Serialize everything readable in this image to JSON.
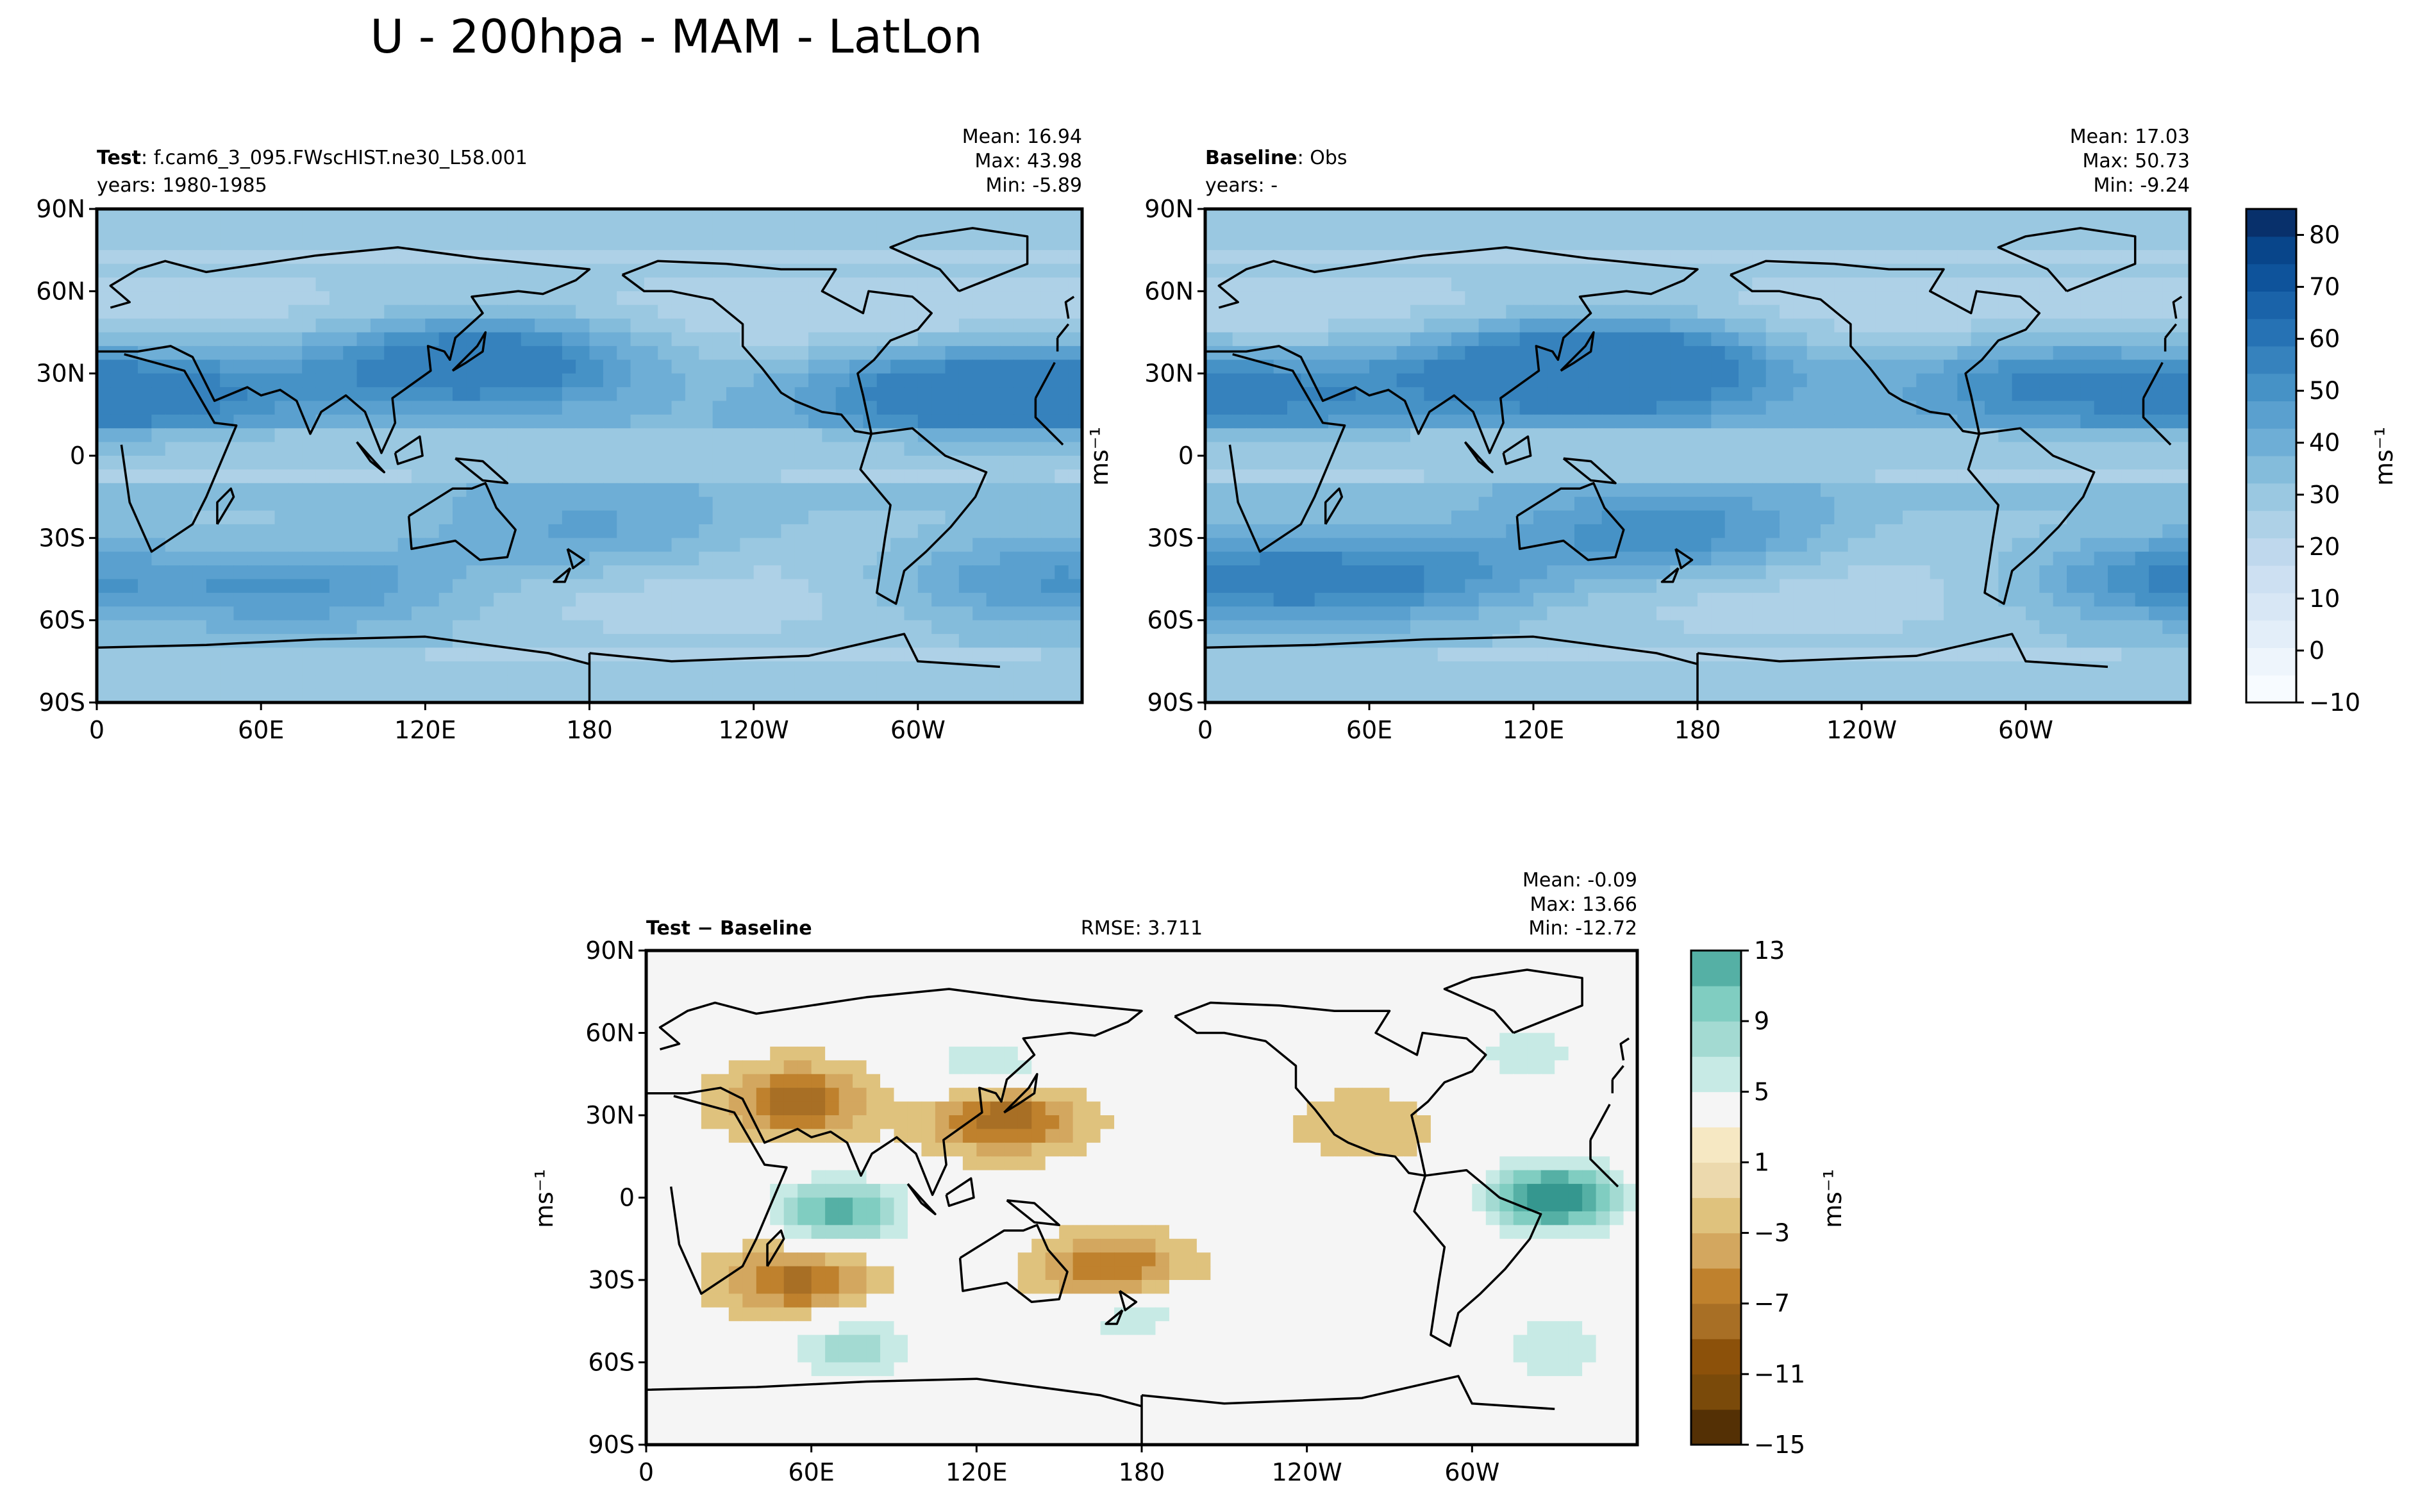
{
  "figure": {
    "title": "U - 200hpa - MAM - LatLon"
  },
  "colors": {
    "blues": [
      "#f7fbff",
      "#eef5fc",
      "#e3eef9",
      "#d8e7f5",
      "#cde0f2",
      "#bfd8ed",
      "#aed1e7",
      "#9ac8e1",
      "#84bcdb",
      "#6eaed6",
      "#5aa0cf",
      "#4692c6",
      "#3682bd",
      "#2672b4",
      "#1a63a9",
      "#0e539b",
      "#08458a",
      "#08306b"
    ],
    "diverging": [
      "#543005",
      "#7a4a0a",
      "#8c510a",
      "#a86f25",
      "#bf812d",
      "#d3a75f",
      "#dfc27d",
      "#ecd9ad",
      "#f6e8c3",
      "#f5f5f5",
      "#c7eae5",
      "#a3dad2",
      "#80cdc1",
      "#55b0a5",
      "#35978f",
      "#1d7f77",
      "#01665e",
      "#003c30"
    ],
    "land": "#000000"
  },
  "panels": [
    {
      "name": "test",
      "label_bold": "Test",
      "label_text": "f.cam6_3_095.FWscHIST.ne30_L58.001",
      "years": "years: 1980-1985",
      "stats": [
        "Mean: 16.94",
        "Max: 43.98",
        "Min: -5.89"
      ]
    },
    {
      "name": "baseline",
      "label_bold": "Baseline",
      "label_text": "Obs",
      "years": "years: -",
      "stats": [
        "Mean: 17.03",
        "Max: 50.73",
        "Min: -9.24"
      ]
    },
    {
      "name": "diff",
      "label_bold": "Test − Baseline",
      "rmse": "RMSE: 3.711",
      "stats": [
        "Mean: -0.09",
        "Max: 13.66",
        "Min: -12.72"
      ]
    }
  ],
  "chart_data": [
    {
      "type": "heatmap",
      "title": "Test",
      "x_ticks": [
        "0",
        "60E",
        "120E",
        "180",
        "120W",
        "60W"
      ],
      "y_ticks": [
        "90N",
        "60N",
        "30N",
        "0",
        "30S",
        "60S",
        "90S"
      ],
      "xlim": [
        0,
        360
      ],
      "ylim": [
        -90,
        90
      ],
      "jets": [
        {
          "lon": 140,
          "lat": 35,
          "value": 40
        },
        {
          "lon": 310,
          "lat": 25,
          "value": 32
        },
        {
          "lon": 20,
          "lat": 25,
          "value": 30
        },
        {
          "lon": 80,
          "lat": -48,
          "value": 30
        },
        {
          "lon": 180,
          "lat": -30,
          "value": 25
        },
        {
          "lon": 340,
          "lat": -45,
          "value": 30
        }
      ]
    },
    {
      "type": "heatmap",
      "title": "Baseline",
      "x_ticks": [
        "0",
        "60E",
        "120E",
        "180",
        "120W",
        "60W"
      ],
      "y_ticks": [
        "90N",
        "60N",
        "30N",
        "0",
        "30S",
        "60S",
        "90S"
      ],
      "xlim": [
        0,
        360
      ],
      "ylim": [
        -90,
        90
      ],
      "colorbar": {
        "label": "ms⁻¹",
        "ticks": [
          "80",
          "70",
          "60",
          "50",
          "40",
          "30",
          "20",
          "10",
          "0",
          "−10"
        ],
        "range": [
          -10,
          85
        ]
      },
      "jets": [
        {
          "lon": 145,
          "lat": 33,
          "value": 48
        },
        {
          "lon": 305,
          "lat": 28,
          "value": 30
        },
        {
          "lon": 30,
          "lat": 25,
          "value": 28
        },
        {
          "lon": 70,
          "lat": -45,
          "value": 32
        },
        {
          "lon": 170,
          "lat": -30,
          "value": 30
        },
        {
          "lon": 350,
          "lat": -45,
          "value": 32
        }
      ]
    },
    {
      "type": "heatmap",
      "title": "Test − Baseline",
      "x_ticks": [
        "0",
        "60E",
        "120E",
        "180",
        "120W",
        "60W"
      ],
      "y_ticks": [
        "90N",
        "60N",
        "30N",
        "0",
        "30S",
        "60S",
        "90S"
      ],
      "xlim": [
        0,
        360
      ],
      "ylim": [
        -90,
        90
      ],
      "colorbar": {
        "label": "ms⁻¹",
        "ticks": [
          "13",
          "9",
          "5",
          "1",
          "−3",
          "−7",
          "−11",
          "−15"
        ],
        "range": [
          -15,
          13
        ]
      },
      "anomalies": [
        {
          "lon": 70,
          "lat": -5,
          "value": 10
        },
        {
          "lon": 330,
          "lat": 0,
          "value": 13
        },
        {
          "lon": 125,
          "lat": 45,
          "value": 6
        },
        {
          "lon": 130,
          "lat": 30,
          "value": -10
        },
        {
          "lon": 55,
          "lat": 35,
          "value": -8
        },
        {
          "lon": 55,
          "lat": -30,
          "value": -8
        },
        {
          "lon": 170,
          "lat": -28,
          "value": -9
        },
        {
          "lon": 175,
          "lat": -40,
          "value": 6
        },
        {
          "lon": 75,
          "lat": -55,
          "value": 6
        },
        {
          "lon": 330,
          "lat": -55,
          "value": 5
        },
        {
          "lon": 250,
          "lat": 0,
          "value": 3
        },
        {
          "lon": 260,
          "lat": 25,
          "value": -3
        },
        {
          "lon": 320,
          "lat": 52,
          "value": 4
        }
      ]
    }
  ]
}
